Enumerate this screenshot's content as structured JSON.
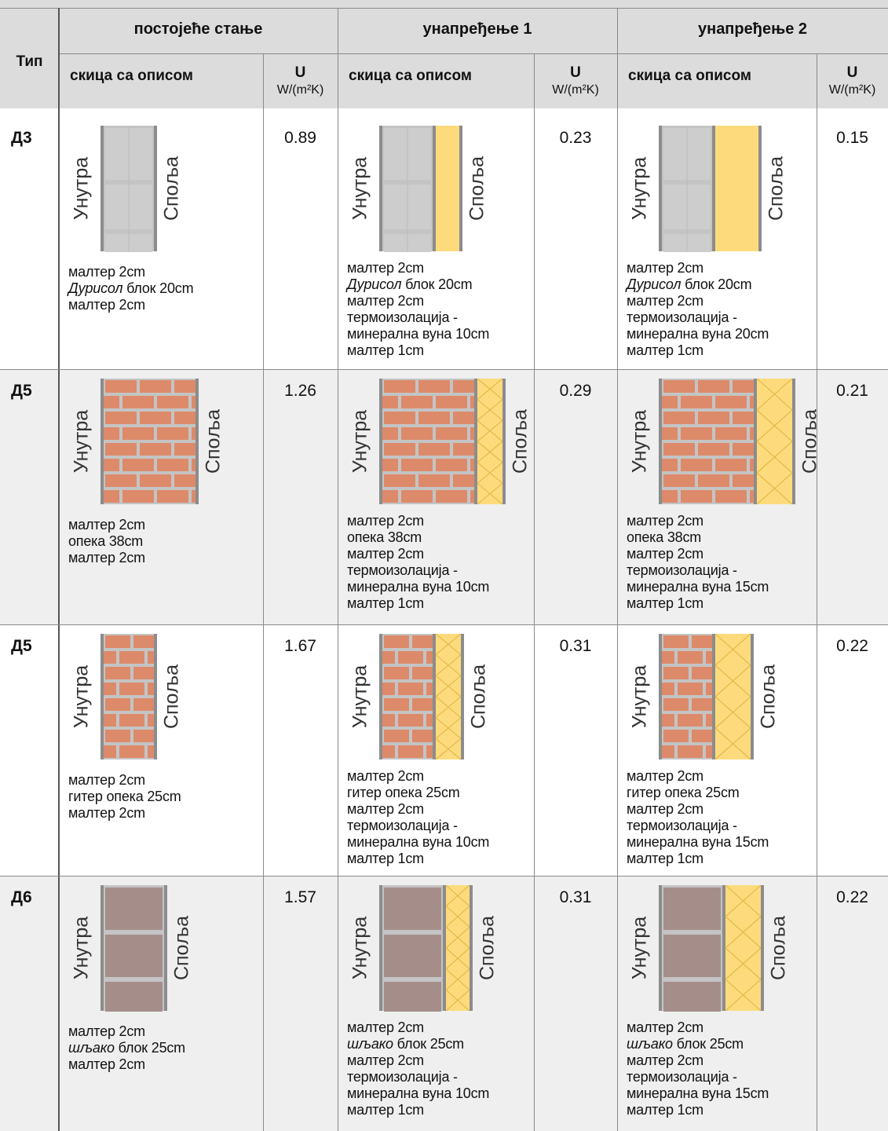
{
  "header": {
    "type_label": "Тип",
    "sketch_inner": "Унутра",
    "sketch_outer": "Споља",
    "groups": [
      {
        "title": "постојеће стање",
        "sketch_label": "скица са описом",
        "u_label": "U",
        "u_unit": "W/(m²K)"
      },
      {
        "title": "унапређење 1",
        "sketch_label": "скица са описом",
        "u_label": "U",
        "u_unit": "W/(m²K)"
      },
      {
        "title": "унапређење 2",
        "sketch_label": "скица са описом",
        "u_label": "U",
        "u_unit": "W/(m²K)"
      }
    ]
  },
  "rows": [
    {
      "type": "Д3",
      "cells": [
        {
          "u": 0.89,
          "lines": [
            "малтер 2cm",
            {
              "em": "Дурисол",
              "text": " блок 20cm"
            },
            "малтер 2cm"
          ]
        },
        {
          "u": 0.23,
          "lines": [
            "малтер 2cm",
            {
              "em": "Дурисол",
              "text": " блок 20cm"
            },
            "малтер 2cm",
            "термоизолација -",
            "минерална вуна 10cm",
            "малтер 1cm"
          ]
        },
        {
          "u": 0.15,
          "lines": [
            "малтер 2cm",
            {
              "em": "Дурисол",
              "text": " блок 20cm"
            },
            "малтер 2cm",
            "термоизолација -",
            "минерална вуна 20cm",
            "малтер 1cm"
          ]
        }
      ]
    },
    {
      "type": "Д5",
      "cells": [
        {
          "u": 1.26,
          "lines": [
            "малтер 2cm",
            "опека 38cm",
            "малтер 2cm"
          ]
        },
        {
          "u": 0.29,
          "lines": [
            "малтер 2cm",
            "опека 38cm",
            "малтер 2cm",
            "термоизолација -",
            "минерална вуна 10cm",
            "малтер 1cm"
          ]
        },
        {
          "u": 0.21,
          "lines": [
            "малтер 2cm",
            "опека 38cm",
            "малтер 2cm",
            "термоизолација -",
            "минерална вуна 15cm",
            "малтер 1cm"
          ]
        }
      ]
    },
    {
      "type": "Д5",
      "cells": [
        {
          "u": 1.67,
          "lines": [
            "малтер 2cm",
            "гитер опека 25cm",
            "малтер 2cm"
          ]
        },
        {
          "u": 0.31,
          "lines": [
            "малтер 2cm",
            "гитер опека 25cm",
            "малтер 2cm",
            "термоизолација -",
            "минерална вуна 10cm",
            "малтер 1cm"
          ]
        },
        {
          "u": 0.22,
          "lines": [
            "малтер 2cm",
            "гитер опека 25cm",
            "малтер 2cm",
            "термоизолација -",
            "минерална вуна 15cm",
            "малтер 1cm"
          ]
        }
      ]
    },
    {
      "type": "Д6",
      "cells": [
        {
          "u": 1.57,
          "lines": [
            "малтер 2cm",
            {
              "em": "шљако",
              "text": " блок 25cm"
            },
            "малтер 2cm"
          ]
        },
        {
          "u": 0.31,
          "lines": [
            "малтер 2cm",
            {
              "em": "шљако",
              "text": " блок 25cm"
            },
            "малтер 2cm",
            "термоизолација -",
            "минерална вуна 10cm",
            "малтер 1cm"
          ]
        },
        {
          "u": 0.22,
          "lines": [
            "малтер 2cm",
            {
              "em": "шљако",
              "text": " блок 25cm"
            },
            "малтер 2cm",
            "термоизолација -",
            "минерална вуна 15cm",
            "малтер 1cm"
          ]
        }
      ]
    }
  ]
}
